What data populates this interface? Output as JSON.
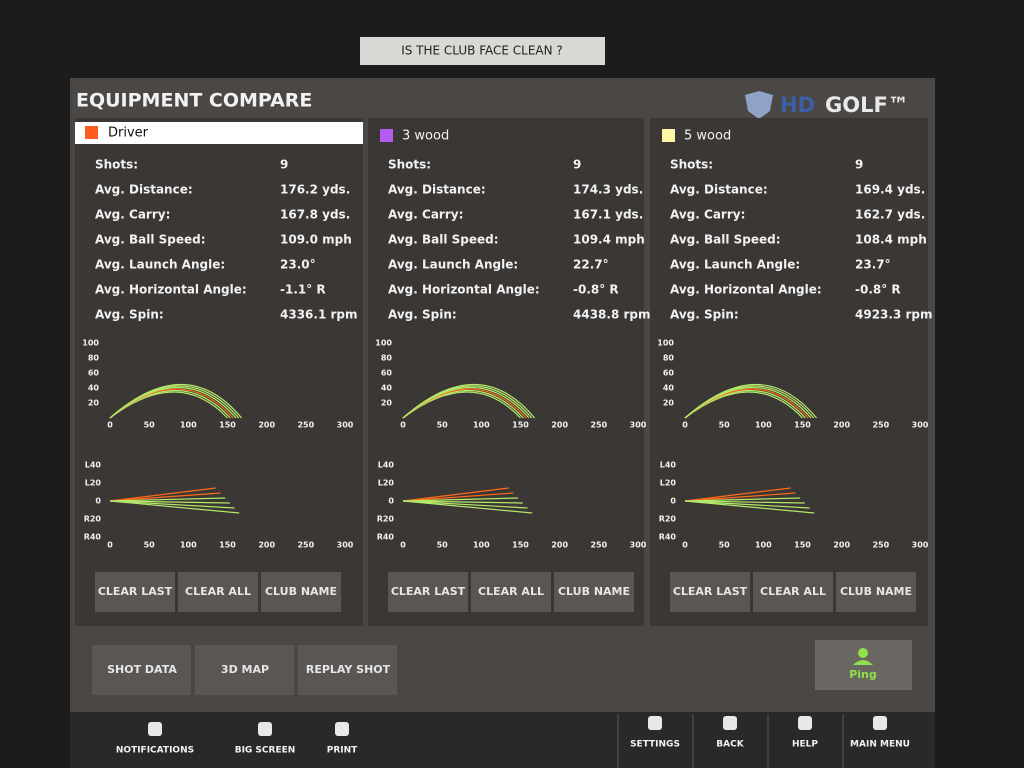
{
  "bezel_label": "IS THE CLUB FACE CLEAN ?",
  "header": {
    "title": "EQUIPMENT COMPARE",
    "logo_hd": "HD",
    "logo_golf": "GOLF™"
  },
  "stat_labels": [
    "Shots:",
    "Avg. Distance:",
    "Avg. Carry:",
    "Avg. Ball Speed:",
    "Avg. Launch Angle:",
    "Avg. Horizontal Angle:",
    "Avg. Spin:"
  ],
  "clubs": [
    {
      "name": "Driver",
      "color": "#ff5a1f",
      "stats": [
        "9",
        "176.2 yds.",
        "167.8 yds.",
        "109.0 mph",
        "23.0°",
        "-1.1° R",
        "4336.1 rpm"
      ]
    },
    {
      "name": "3 wood",
      "color": "#b45cf0",
      "stats": [
        "9",
        "174.3 yds.",
        "167.1 yds.",
        "109.4 mph",
        "22.7°",
        "-0.8° R",
        "4438.8 rpm"
      ]
    },
    {
      "name": "5 wood",
      "color": "#fff6a8",
      "stats": [
        "9",
        "169.4 yds.",
        "162.7 yds.",
        "108.4 mph",
        "23.7°",
        "-0.8° R",
        "4923.3 rpm"
      ]
    }
  ],
  "height_ticks": [
    100,
    80,
    60,
    40,
    20
  ],
  "distance_ticks": [
    0,
    50,
    100,
    150,
    200,
    250,
    300
  ],
  "lateral_ticks": [
    "L40",
    "L20",
    "0",
    "R20",
    "R40"
  ],
  "buttons": [
    "CLEAR LAST",
    "CLEAR ALL",
    "CLUB NAME"
  ],
  "actions": [
    "SHOT DATA",
    "3D MAP",
    "REPLAY SHOT"
  ],
  "player": "Ping",
  "nav_left": [
    "NOTIFICATIONS",
    "BIG SCREEN",
    "PRINT"
  ],
  "nav_right": [
    "SETTINGS",
    "BACK",
    "HELP",
    "MAIN MENU"
  ]
}
